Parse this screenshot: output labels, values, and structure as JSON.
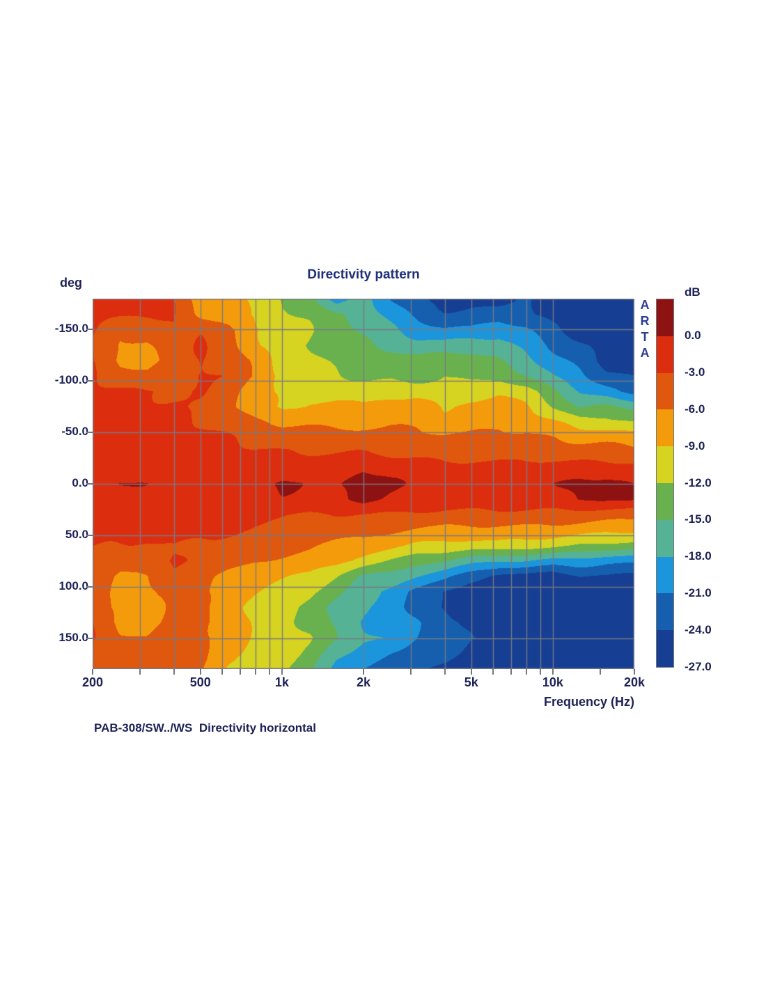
{
  "chart": {
    "title": "Directivity pattern",
    "y_axis": {
      "label": "deg"
    },
    "x_axis": {
      "label": "Frequency (Hz)",
      "major_ticks": [
        {
          "label": "200",
          "hz": 200
        },
        {
          "label": "500",
          "hz": 500
        },
        {
          "label": "1k",
          "hz": 1000
        },
        {
          "label": "2k",
          "hz": 2000
        },
        {
          "label": "5k",
          "hz": 5000
        },
        {
          "label": "10k",
          "hz": 10000
        },
        {
          "label": "20k",
          "hz": 20000
        }
      ]
    },
    "y_tick_labels": [
      {
        "label": "-150.0",
        "deg": -150
      },
      {
        "label": "-100.0",
        "deg": -100
      },
      {
        "label": "-50.0",
        "deg": -50
      },
      {
        "label": "0.0",
        "deg": 0
      },
      {
        "label": "50.0",
        "deg": 50
      },
      {
        "label": "100.0",
        "deg": 100
      },
      {
        "label": "150.0",
        "deg": 150
      }
    ],
    "watermark": "ARTA",
    "caption": "PAB-308/SW../WS  Directivity horizontal",
    "colorbar": {
      "label": "dB",
      "tick_labels": [
        "0.0",
        "-3.0",
        "-6.0",
        "-9.0",
        "-12.0",
        "-15.0",
        "-18.0",
        "-21.0",
        "-24.0",
        "-27.0"
      ]
    }
  },
  "chart_data": {
    "type": "heatmap",
    "title": "Directivity pattern",
    "xlabel": "Frequency (Hz)",
    "ylabel": "deg",
    "x_scale": "log",
    "x_range_hz": [
      200,
      20000
    ],
    "y_range_deg": [
      -180,
      180
    ],
    "grid": true,
    "grid_frequencies_hz": [
      300,
      400,
      500,
      600,
      700,
      800,
      900,
      1000,
      2000,
      3000,
      4000,
      5000,
      6000,
      7000,
      8000,
      9000,
      10000
    ],
    "grid_angles_deg": [
      -150,
      -100,
      -50,
      0,
      50,
      100,
      150
    ],
    "axis_tick_frequencies_hz": [
      200,
      300,
      400,
      500,
      600,
      700,
      800,
      900,
      1000,
      2000,
      3000,
      4000,
      5000,
      6000,
      7000,
      8000,
      9000,
      10000,
      15000,
      20000
    ],
    "color_scale": {
      "units": "dB",
      "levels_db": [
        0,
        -3,
        -6,
        -9,
        -12,
        -15,
        -18,
        -21,
        -24,
        -27
      ],
      "colors": [
        "#8e1211",
        "#dc2e0f",
        "#e0570e",
        "#f49b0c",
        "#d6d321",
        "#69b14e",
        "#56b294",
        "#1b96dd",
        "#155fae",
        "#163e92"
      ]
    },
    "x_frequencies_hz": [
      200,
      250,
      315,
      400,
      500,
      630,
      800,
      1000,
      1250,
      1600,
      2000,
      2500,
      3150,
      4000,
      5000,
      6300,
      8000,
      10000,
      12500,
      16000,
      20000
    ],
    "y_angles_deg": [
      -180,
      -165,
      -150,
      -135,
      -120,
      -105,
      -90,
      -75,
      -60,
      -45,
      -30,
      -15,
      0,
      15,
      30,
      45,
      60,
      75,
      90,
      105,
      120,
      135,
      150,
      165,
      180
    ],
    "values_db": [
      [
        -2.5,
        -2.5,
        -2.5,
        -2.8,
        -8.0,
        -7.0,
        -9.5,
        -12.5,
        -13.5,
        -20.0,
        -17.0,
        -21.0,
        -23.5,
        -25.5,
        -24.5,
        -25.5,
        -23.5,
        -25.5,
        -26.5,
        -26.0,
        -26.0
      ],
      [
        -2.5,
        -2.5,
        -2.5,
        -3.0,
        -6.5,
        -7.5,
        -9.5,
        -11.5,
        -12.5,
        -15.0,
        -16.0,
        -19.0,
        -22.0,
        -23.5,
        -23.0,
        -22.5,
        -23.0,
        -25.0,
        -26.0,
        -26.5,
        -26.5
      ],
      [
        -2.5,
        -5.5,
        -5.0,
        -3.0,
        -3.0,
        -5.5,
        -8.5,
        -10.5,
        -12.0,
        -13.5,
        -15.5,
        -17.5,
        -19.5,
        -20.5,
        -20.5,
        -19.0,
        -20.5,
        -23.5,
        -25.5,
        -26.5,
        -26.5
      ],
      [
        -3.0,
        -6.5,
        -6.2,
        -4.0,
        -3.0,
        -4.5,
        -8.5,
        -11.0,
        -12.0,
        -13.0,
        -14.5,
        -16.0,
        -17.0,
        -17.0,
        -16.0,
        -17.0,
        -19.0,
        -21.5,
        -23.5,
        -25.5,
        -26.5
      ],
      [
        -3.0,
        -6.5,
        -7.0,
        -5.0,
        -3.0,
        -3.5,
        -7.0,
        -10.5,
        -11.0,
        -12.5,
        -13.5,
        -13.0,
        -14.0,
        -13.0,
        -14.0,
        -15.0,
        -17.0,
        -20.0,
        -22.0,
        -25.0,
        -26.0
      ],
      [
        -2.5,
        -4.5,
        -5.5,
        -4.0,
        -2.8,
        -3.5,
        -6.5,
        -9.5,
        -10.5,
        -11.5,
        -12.5,
        -12.5,
        -13.5,
        -12.0,
        -13.0,
        -13.0,
        -15.0,
        -18.0,
        -20.0,
        -23.0,
        -24.0
      ],
      [
        -2.2,
        -2.5,
        -3.0,
        -3.2,
        -3.2,
        -4.5,
        -8.0,
        -9.5,
        -9.5,
        -10.0,
        -10.5,
        -10.5,
        -10.0,
        -11.0,
        -11.0,
        -9.5,
        -11.0,
        -14.0,
        -18.0,
        -20.0,
        -22.0
      ],
      [
        -2.2,
        -2.2,
        -2.5,
        -3.0,
        -3.8,
        -5.0,
        -8.0,
        -9.5,
        -8.5,
        -8.0,
        -8.5,
        -7.0,
        -7.5,
        -9.5,
        -8.0,
        -7.5,
        -8.5,
        -12.0,
        -15.5,
        -14.0,
        -15.5
      ],
      [
        -2.0,
        -2.0,
        -2.2,
        -2.5,
        -3.0,
        -4.0,
        -5.5,
        -6.5,
        -6.5,
        -7.0,
        -7.5,
        -6.5,
        -6.5,
        -8.0,
        -7.0,
        -6.5,
        -7.0,
        -8.5,
        -10.5,
        -11.0,
        -12.0
      ],
      [
        -1.5,
        -1.5,
        -1.8,
        -2.0,
        -2.2,
        -2.8,
        -3.5,
        -4.2,
        -4.5,
        -4.5,
        -4.5,
        -5.0,
        -5.0,
        -5.5,
        -5.5,
        -5.0,
        -5.5,
        -6.0,
        -7.0,
        -7.0,
        -7.5
      ],
      [
        -1.2,
        -1.2,
        -1.3,
        -1.5,
        -1.8,
        -2.0,
        -2.5,
        -3.0,
        -3.2,
        -3.2,
        -3.2,
        -3.5,
        -3.8,
        -4.0,
        -4.0,
        -4.0,
        -4.0,
        -4.2,
        -4.5,
        -4.8,
        -5.0
      ],
      [
        -1.0,
        -1.0,
        -1.0,
        -1.2,
        -1.2,
        -1.3,
        -1.5,
        -1.5,
        -1.5,
        -1.5,
        -0.3,
        -1.2,
        -1.5,
        -1.8,
        -1.8,
        -1.8,
        -1.8,
        -1.8,
        -2.0,
        -2.0,
        -2.2
      ],
      [
        -0.8,
        0.3,
        -0.2,
        -0.8,
        -0.8,
        -0.8,
        -0.6,
        0.7,
        -0.6,
        -0.2,
        1.5,
        0.4,
        -0.4,
        -0.8,
        -0.8,
        -0.8,
        -0.8,
        -0.3,
        0.9,
        0.8,
        -0.4
      ],
      [
        -1.0,
        -1.0,
        -1.0,
        -0.9,
        -1.0,
        -1.0,
        -0.9,
        -0.4,
        -1.0,
        -0.6,
        0.7,
        -0.6,
        -1.2,
        -1.3,
        -1.3,
        -1.3,
        -1.3,
        -1.0,
        0.3,
        0.2,
        0.5
      ],
      [
        -1.5,
        -1.5,
        -1.6,
        -1.8,
        -2.0,
        -2.2,
        -2.5,
        -2.8,
        -3.0,
        -3.0,
        -3.0,
        -3.2,
        -3.5,
        -3.8,
        -3.8,
        -3.8,
        -3.8,
        -4.0,
        -4.2,
        -4.5,
        -4.8
      ],
      [
        -2.0,
        -2.0,
        -2.2,
        -2.3,
        -2.5,
        -3.0,
        -3.5,
        -4.0,
        -4.2,
        -4.3,
        -4.5,
        -5.5,
        -6.5,
        -7.0,
        -7.0,
        -7.0,
        -7.0,
        -7.0,
        -7.5,
        -8.0,
        -8.0
      ],
      [
        -2.5,
        -3.0,
        -3.5,
        -3.0,
        -3.5,
        -4.0,
        -4.5,
        -5.0,
        -5.5,
        -6.5,
        -7.0,
        -8.0,
        -9.5,
        -10.0,
        -10.5,
        -10.0,
        -10.5,
        -11.0,
        -12.0,
        -12.5,
        -13.0
      ],
      [
        -3.0,
        -4.5,
        -4.0,
        -2.8,
        -4.0,
        -5.0,
        -6.0,
        -6.5,
        -7.0,
        -8.0,
        -10.0,
        -12.0,
        -14.0,
        -15.0,
        -17.0,
        -18.0,
        -18.0,
        -19.0,
        -19.0,
        -20.0,
        -20.0
      ],
      [
        -3.5,
        -6.5,
        -6.0,
        -3.8,
        -5.0,
        -6.5,
        -7.5,
        -8.5,
        -9.5,
        -12.0,
        -15.5,
        -16.0,
        -18.0,
        -20.0,
        -23.0,
        -25.0,
        -25.0,
        -26.0,
        -24.0,
        -24.0,
        -25.0
      ],
      [
        -3.5,
        -7.0,
        -6.8,
        -5.0,
        -5.5,
        -7.0,
        -8.5,
        -10.0,
        -11.5,
        -14.0,
        -17.0,
        -19.0,
        -22.0,
        -24.0,
        -26.0,
        -27.0,
        -27.0,
        -27.0,
        -27.0,
        -27.0,
        -27.0
      ],
      [
        -3.5,
        -7.5,
        -7.0,
        -5.0,
        -5.5,
        -7.5,
        -9.5,
        -11.0,
        -13.0,
        -16.0,
        -18.0,
        -19.5,
        -22.0,
        -24.5,
        -26.0,
        -27.0,
        -27.0,
        -27.0,
        -27.0,
        -27.0,
        -27.0
      ],
      [
        -3.5,
        -7.0,
        -6.8,
        -5.0,
        -5.0,
        -7.0,
        -9.5,
        -11.0,
        -13.0,
        -16.0,
        -18.5,
        -19.5,
        -21.0,
        -23.0,
        -24.0,
        -25.0,
        -26.0,
        -27.0,
        -27.0,
        -27.0,
        -27.0
      ],
      [
        -3.0,
        -5.5,
        -6.0,
        -4.5,
        -5.0,
        -7.0,
        -9.5,
        -10.5,
        -12.0,
        -15.0,
        -17.5,
        -18.5,
        -21.0,
        -22.0,
        -24.0,
        -25.0,
        -26.0,
        -26.0,
        -27.0,
        -27.0,
        -27.0
      ],
      [
        -3.5,
        -3.8,
        -4.5,
        -4.0,
        -5.5,
        -8.0,
        -9.5,
        -10.5,
        -13.0,
        -17.0,
        -19.0,
        -21.0,
        -22.0,
        -23.0,
        -25.0,
        -26.0,
        -26.0,
        -27.0,
        -27.0,
        -27.0,
        -27.0
      ],
      [
        -3.5,
        -3.5,
        -4.0,
        -4.0,
        -6.0,
        -9.0,
        -10.0,
        -11.5,
        -14.0,
        -19.0,
        -21.0,
        -23.0,
        -24.0,
        -25.0,
        -26.0,
        -26.0,
        -27.0,
        -27.0,
        -27.0,
        -27.0,
        -27.0
      ]
    ]
  }
}
